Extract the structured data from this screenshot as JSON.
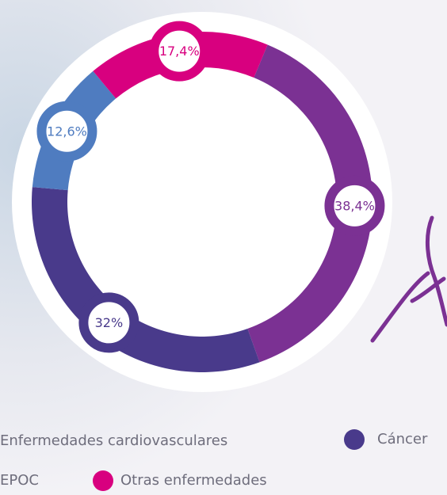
{
  "chart_data": {
    "type": "donut",
    "categories": [
      "Enfermedades cardiovasculares",
      "Cáncer",
      "EPOC",
      "Otras enfermedades"
    ],
    "values": [
      38.4,
      32,
      12.6,
      17.4
    ],
    "value_labels": [
      "38,4%",
      "32%",
      "12,6%",
      "17,4%"
    ],
    "colors": [
      "#7b3193",
      "#493a8b",
      "#4f7cc0",
      "#d8007f"
    ]
  }
}
